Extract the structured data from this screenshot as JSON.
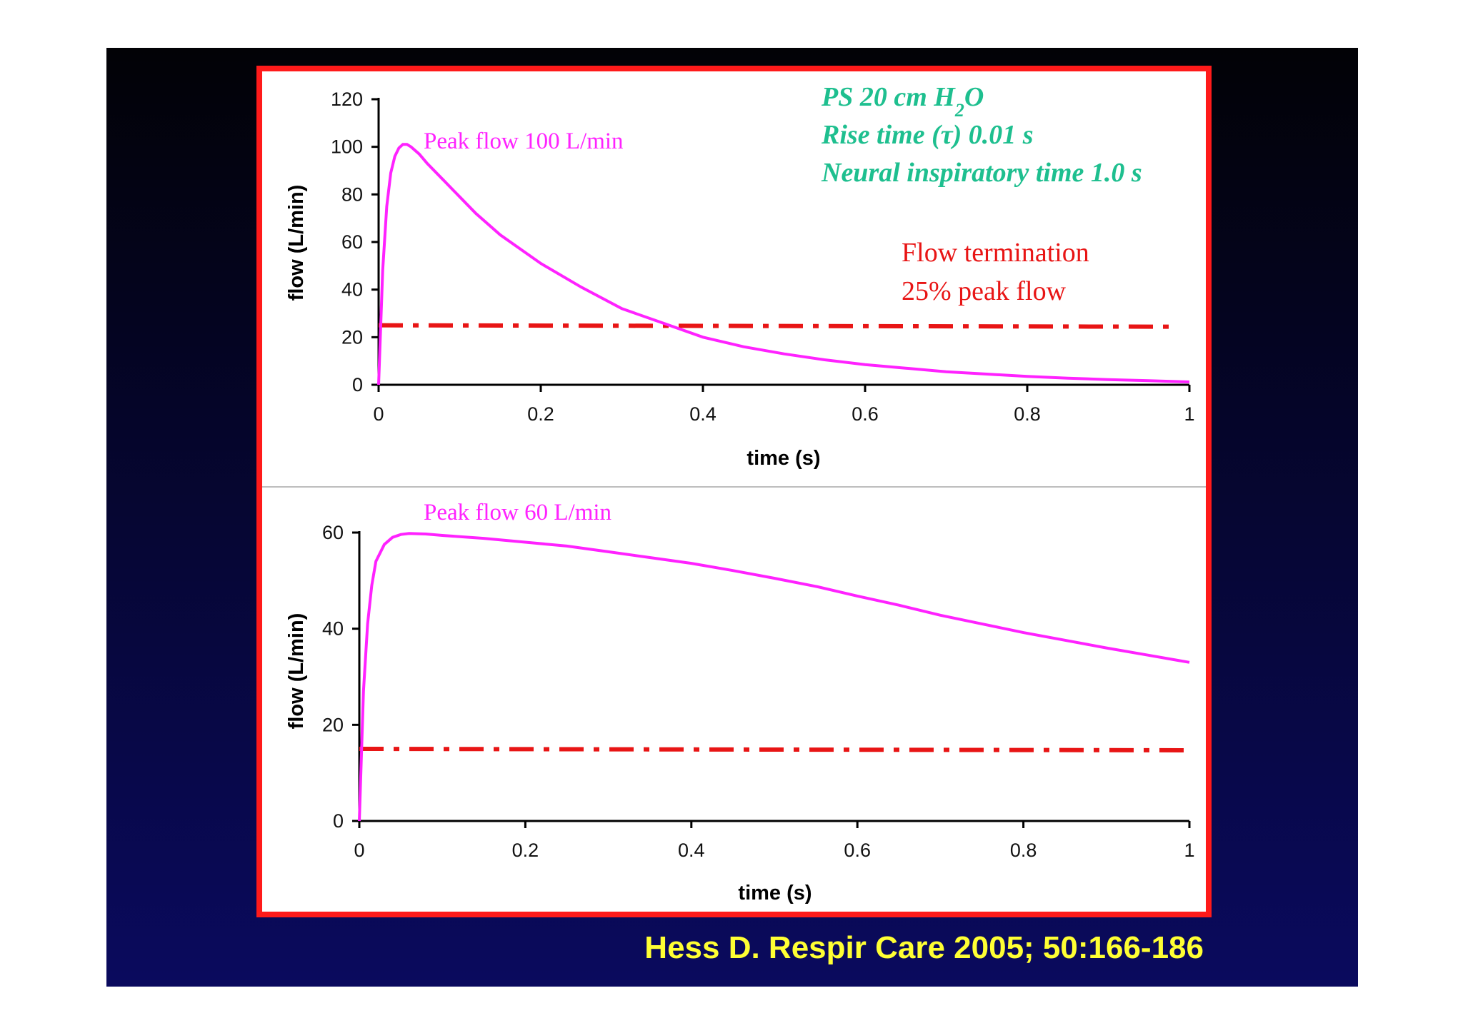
{
  "citation": "Hess D. Respir Care 2005; 50:166-186",
  "colors": {
    "curve": "#ff22ff",
    "threshold": "#e81515",
    "params_text": "#1ebf8f",
    "citation": "#ffff33",
    "frame_border": "#ff1a1a"
  },
  "chart_data": [
    {
      "type": "line",
      "title": "",
      "xlabel": "time (s)",
      "ylabel": "flow (L/min)",
      "xlim": [
        0,
        1
      ],
      "ylim": [
        0,
        120
      ],
      "xticks": [
        "0",
        "0.2",
        "0.4",
        "0.6",
        "0.8",
        "1"
      ],
      "yticks": [
        "0",
        "20",
        "40",
        "60",
        "80",
        "100",
        "120"
      ],
      "series": [
        {
          "x": [
            0,
            0.005,
            0.01,
            0.015,
            0.02,
            0.025,
            0.03,
            0.035,
            0.04,
            0.05,
            0.06,
            0.08,
            0.1,
            0.12,
            0.15,
            0.2,
            0.25,
            0.3,
            0.35,
            0.4,
            0.45,
            0.5,
            0.55,
            0.6,
            0.65,
            0.7,
            0.75,
            0.8,
            0.85,
            0.9,
            0.95,
            1.0
          ],
          "y": [
            0,
            48,
            75,
            89,
            96,
            99.5,
            101,
            101,
            100,
            97,
            93,
            86,
            79,
            72,
            63,
            51,
            41,
            32,
            26,
            20,
            16,
            13,
            10.5,
            8.5,
            7,
            5.5,
            4.5,
            3.5,
            2.8,
            2.2,
            1.7,
            1.2
          ]
        }
      ],
      "threshold": {
        "y": 25,
        "style": "dash-dot"
      },
      "annotations": {
        "peak": "Peak flow 100 L/min",
        "params": [
          "PS 20 cm H",
          "2",
          "O",
          "Rise time (",
          "τ",
          ") 0.01 s",
          "Neural inspiratory time 1.0 s"
        ],
        "termination": [
          "Flow termination",
          "25% peak flow"
        ]
      }
    },
    {
      "type": "line",
      "title": "",
      "xlabel": "time (s)",
      "ylabel": "flow (L/min)",
      "xlim": [
        0,
        1
      ],
      "ylim": [
        0,
        60
      ],
      "xticks": [
        "0",
        "0.2",
        "0.4",
        "0.6",
        "0.8",
        "1"
      ],
      "yticks": [
        "0",
        "20",
        "40",
        "60"
      ],
      "series": [
        {
          "x": [
            0,
            0.005,
            0.01,
            0.015,
            0.02,
            0.03,
            0.04,
            0.05,
            0.06,
            0.08,
            0.1,
            0.15,
            0.2,
            0.25,
            0.3,
            0.35,
            0.4,
            0.45,
            0.5,
            0.55,
            0.6,
            0.65,
            0.7,
            0.75,
            0.8,
            0.85,
            0.9,
            0.95,
            1.0
          ],
          "y": [
            0,
            27,
            41,
            49,
            54,
            57.5,
            59,
            59.6,
            59.8,
            59.7,
            59.4,
            58.8,
            58,
            57.2,
            56,
            54.8,
            53.6,
            52.1,
            50.5,
            48.8,
            46.8,
            44.9,
            42.8,
            41,
            39.2,
            37.6,
            36,
            34.5,
            33
          ]
        }
      ],
      "threshold": {
        "y": 15,
        "style": "dash-dot"
      },
      "annotations": {
        "peak": "Peak flow 60 L/min"
      }
    }
  ]
}
